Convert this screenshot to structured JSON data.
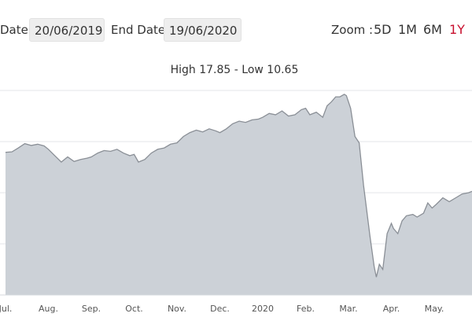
{
  "toolbar": {
    "start_date_label": "Date",
    "start_date_value": "20/06/2019",
    "end_date_label": "End Date",
    "end_date_value": "19/06/2020",
    "zoom_label": "Zoom :",
    "zoom_options": [
      "5D",
      "1M",
      "6M",
      "1Y"
    ],
    "zoom_active": "1Y",
    "accent_color": "#c8102e"
  },
  "chart_data": {
    "type": "area",
    "subtitle": "High 17.85 - Low 10.65",
    "x_tick_labels": [
      "Jul.",
      "Aug.",
      "Sep.",
      "Oct.",
      "Nov.",
      "Dec.",
      "2020",
      "Feb.",
      "Mar.",
      "Apr.",
      "May."
    ],
    "y_range": [
      10,
      18
    ],
    "grid": true,
    "fill_color": "#ccd1d7",
    "line_color": "#8a8f96",
    "points": [
      [
        0.0,
        15.58
      ],
      [
        0.15,
        15.6
      ],
      [
        0.3,
        15.75
      ],
      [
        0.45,
        15.92
      ],
      [
        0.6,
        15.85
      ],
      [
        0.75,
        15.9
      ],
      [
        0.9,
        15.83
      ],
      [
        1.0,
        15.7
      ],
      [
        1.15,
        15.45
      ],
      [
        1.3,
        15.2
      ],
      [
        1.45,
        15.4
      ],
      [
        1.6,
        15.22
      ],
      [
        1.75,
        15.3
      ],
      [
        1.9,
        15.35
      ],
      [
        2.0,
        15.4
      ],
      [
        2.15,
        15.55
      ],
      [
        2.3,
        15.65
      ],
      [
        2.45,
        15.62
      ],
      [
        2.6,
        15.7
      ],
      [
        2.75,
        15.55
      ],
      [
        2.9,
        15.45
      ],
      [
        3.0,
        15.5
      ],
      [
        3.1,
        15.2
      ],
      [
        3.25,
        15.3
      ],
      [
        3.4,
        15.55
      ],
      [
        3.55,
        15.7
      ],
      [
        3.7,
        15.75
      ],
      [
        3.85,
        15.9
      ],
      [
        4.0,
        15.95
      ],
      [
        4.15,
        16.2
      ],
      [
        4.3,
        16.35
      ],
      [
        4.45,
        16.45
      ],
      [
        4.6,
        16.38
      ],
      [
        4.75,
        16.5
      ],
      [
        4.9,
        16.42
      ],
      [
        5.0,
        16.35
      ],
      [
        5.15,
        16.5
      ],
      [
        5.3,
        16.7
      ],
      [
        5.45,
        16.8
      ],
      [
        5.6,
        16.75
      ],
      [
        5.75,
        16.85
      ],
      [
        5.9,
        16.88
      ],
      [
        6.0,
        16.95
      ],
      [
        6.15,
        17.1
      ],
      [
        6.3,
        17.05
      ],
      [
        6.45,
        17.2
      ],
      [
        6.6,
        17.0
      ],
      [
        6.75,
        17.05
      ],
      [
        6.9,
        17.25
      ],
      [
        7.0,
        17.3
      ],
      [
        7.1,
        17.05
      ],
      [
        7.25,
        17.15
      ],
      [
        7.4,
        16.95
      ],
      [
        7.5,
        17.4
      ],
      [
        7.6,
        17.55
      ],
      [
        7.7,
        17.75
      ],
      [
        7.8,
        17.75
      ],
      [
        7.9,
        17.85
      ],
      [
        7.95,
        17.8
      ],
      [
        8.05,
        17.3
      ],
      [
        8.15,
        16.2
      ],
      [
        8.25,
        15.95
      ],
      [
        8.35,
        14.3
      ],
      [
        8.5,
        12.3
      ],
      [
        8.6,
        11.1
      ],
      [
        8.65,
        10.7
      ],
      [
        8.72,
        11.2
      ],
      [
        8.8,
        11.0
      ],
      [
        8.9,
        12.4
      ],
      [
        9.0,
        12.8
      ],
      [
        9.05,
        12.6
      ],
      [
        9.15,
        12.4
      ],
      [
        9.25,
        12.9
      ],
      [
        9.35,
        13.1
      ],
      [
        9.5,
        13.15
      ],
      [
        9.6,
        13.05
      ],
      [
        9.75,
        13.2
      ],
      [
        9.85,
        13.6
      ],
      [
        9.95,
        13.4
      ],
      [
        10.05,
        13.55
      ],
      [
        10.2,
        13.8
      ],
      [
        10.35,
        13.65
      ],
      [
        10.5,
        13.8
      ],
      [
        10.65,
        13.95
      ],
      [
        10.8,
        14.0
      ],
      [
        10.95,
        14.1
      ],
      [
        11.05,
        14.0
      ]
    ]
  }
}
